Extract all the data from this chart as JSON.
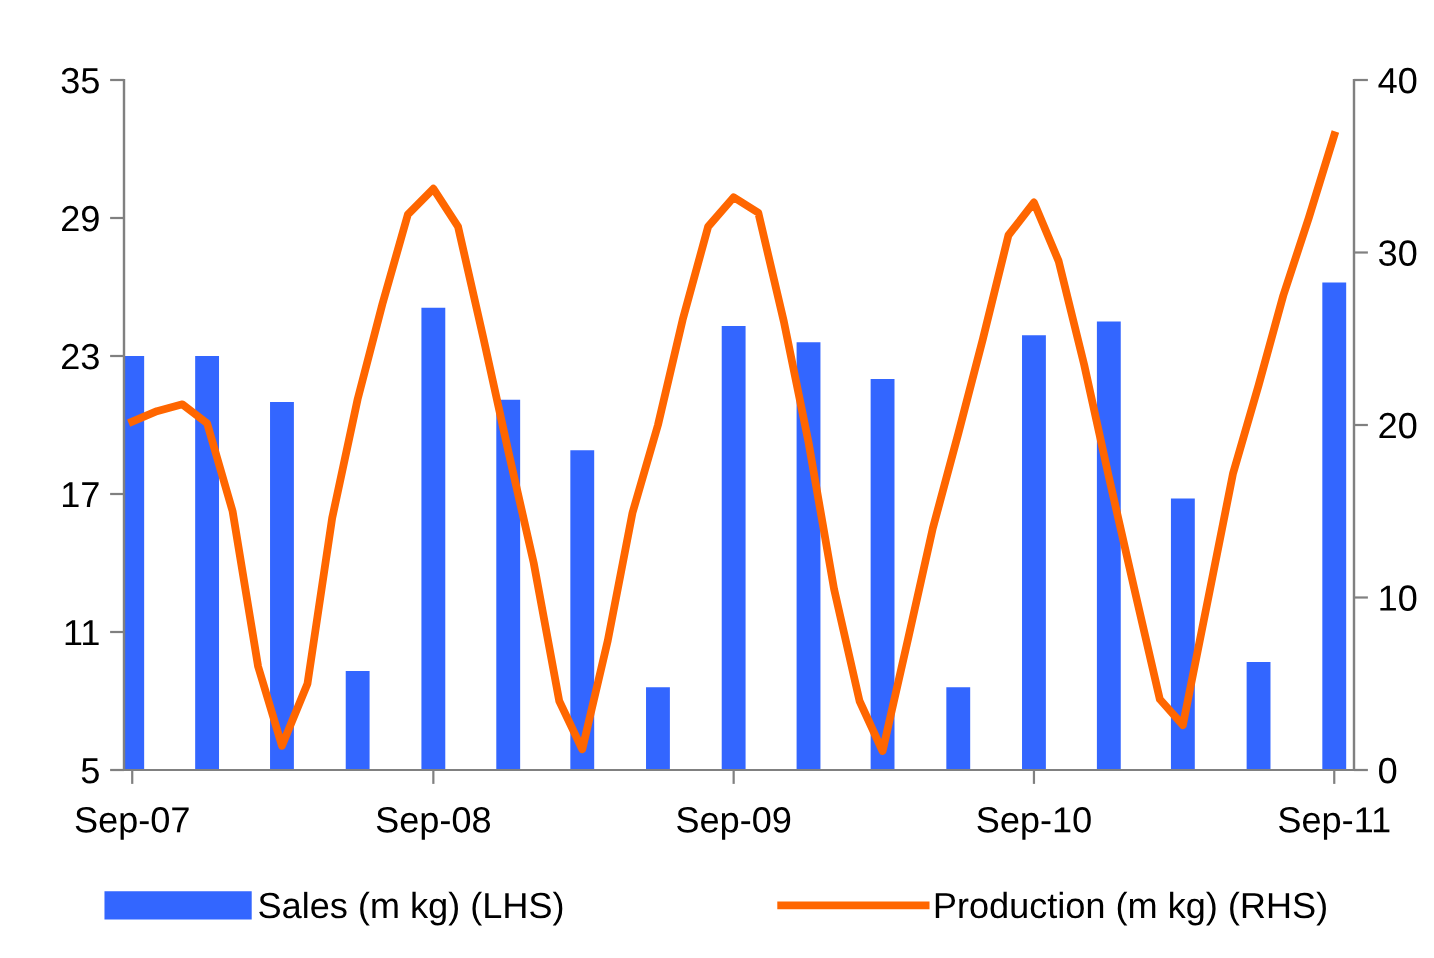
{
  "chart_data": {
    "type": "bar",
    "x": [
      "2007-09",
      "2007-12",
      "2008-03",
      "2008-06",
      "2008-09",
      "2008-12",
      "2009-03",
      "2009-06",
      "2009-09",
      "2009-12",
      "2010-03",
      "2010-06",
      "2010-09",
      "2010-12",
      "2011-03",
      "2011-06",
      "2011-09"
    ],
    "series": [
      {
        "name": "Sales (m kg) (LHS)",
        "color": "#3366ff",
        "values": [
          23,
          23,
          21,
          9.3,
          25.1,
          21.1,
          18.9,
          8.6,
          24.3,
          23.6,
          22,
          8.6,
          23.9,
          24.5,
          16.8,
          9.7,
          26.2
        ]
      },
      {
        "name": "Production (m kg) (RHS)",
        "type": "line",
        "axis": "y2",
        "color": "#ff6600",
        "x": [
          "2007-09",
          "2007-10",
          "2007-11",
          "2007-12",
          "2008-01",
          "2008-02",
          "2008-03",
          "2008-04",
          "2008-05",
          "2008-06",
          "2008-07",
          "2008-08",
          "2008-09",
          "2008-10",
          "2008-11",
          "2008-12",
          "2009-01",
          "2009-02",
          "2009-03",
          "2009-04",
          "2009-05",
          "2009-06",
          "2009-07",
          "2009-08",
          "2009-09",
          "2009-10",
          "2009-11",
          "2009-12",
          "2010-01",
          "2010-02",
          "2010-03",
          "2010-04",
          "2010-05",
          "2010-06",
          "2010-07",
          "2010-08",
          "2010-09",
          "2010-10",
          "2010-11",
          "2010-12",
          "2011-01",
          "2011-02",
          "2011-03",
          "2011-04",
          "2011-05",
          "2011-06",
          "2011-07",
          "2011-08",
          "2011-09"
        ],
        "values": [
          20.2,
          20.8,
          21.2,
          20.1,
          15,
          6,
          1.4,
          5,
          14.6,
          21.5,
          27,
          32.2,
          33.7,
          31.5,
          25,
          18.5,
          12,
          4,
          1.2,
          7.5,
          14.9,
          20,
          26.1,
          31.5,
          33.2,
          32.3,
          26,
          19,
          10.5,
          4,
          1.1,
          7.6,
          14,
          19.5,
          25,
          31,
          32.9,
          29.5,
          23.5,
          17,
          10.5,
          4.1,
          2.6,
          10,
          17.2,
          22.3,
          27.5,
          32,
          36.8
        ]
      }
    ],
    "xlim": [
      "2007-08-22",
      "2011-09-25"
    ],
    "xticks": [
      {
        "value": "2007-09",
        "label": "Sep-07"
      },
      {
        "value": "2008-09",
        "label": "Sep-08"
      },
      {
        "value": "2009-09",
        "label": "Sep-09"
      },
      {
        "value": "2010-09",
        "label": "Sep-10"
      },
      {
        "value": "2011-09",
        "label": "Sep-11"
      }
    ],
    "ylim": [
      5,
      35
    ],
    "yticks": [
      5,
      11,
      17,
      23,
      29,
      35
    ],
    "y2lim": [
      0,
      40
    ],
    "y2ticks": [
      0,
      10,
      20,
      30,
      40
    ],
    "legend": "bottom",
    "grid": false,
    "marker": "none",
    "line_style": "solid"
  }
}
